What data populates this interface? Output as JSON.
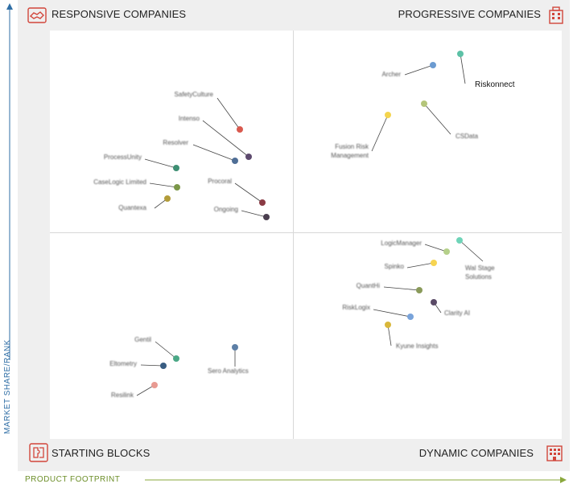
{
  "quadrants": {
    "top_left": "RESPONSIVE COMPANIES",
    "top_right": "PROGRESSIVE COMPANIES",
    "bottom_left": "STARTING BLOCKS",
    "bottom_right": "DYNAMIC COMPANIES"
  },
  "axes": {
    "y_label": "MARKET SHARE/RANK",
    "x_label": "PRODUCT FOOTPRINT"
  },
  "icons": {
    "top_left": "handshake-icon",
    "top_right": "building-icon",
    "bottom_left": "puzzle-icon",
    "bottom_right": "office-icon"
  },
  "colors": {
    "y_axis": "#2f6ea5",
    "x_axis": "#8aa83d",
    "icon_red": "#d2453a"
  },
  "vendors": [
    {
      "label": "Riskonnect",
      "color": "#5cc1a6",
      "blurred": false
    },
    {
      "label": "Archer",
      "color": "#6c9bd1",
      "blurred": true
    },
    {
      "label": "CSData",
      "color": "#b4c57a",
      "blurred": true
    },
    {
      "label": "Fusion Risk Management",
      "color": "#f4d44d",
      "blurred": true
    },
    {
      "label": "SafetyCulture",
      "color": "#d9594e",
      "blurred": true
    },
    {
      "label": "Intenso",
      "color": "#5d4a6e",
      "blurred": true
    },
    {
      "label": "Resolver",
      "color": "#4f6e96",
      "blurred": true
    },
    {
      "label": "ProcessUnity",
      "color": "#3e8f73",
      "blurred": true
    },
    {
      "label": "CaseLogic Limited",
      "color": "#7b9748",
      "blurred": true
    },
    {
      "label": "Quantexa",
      "color": "#b29c3a",
      "blurred": true
    },
    {
      "label": "Procoral",
      "color": "#8a3a44",
      "blurred": true
    },
    {
      "label": "Ongoing",
      "color": "#4b3f4f",
      "blurred": true
    },
    {
      "label": "LogicManager",
      "color": "#b5d08a",
      "blurred": true
    },
    {
      "label": "Wal Stage Solutions",
      "color": "#6fd4b8",
      "blurred": true
    },
    {
      "label": "Spinko",
      "color": "#f6d451",
      "blurred": true
    },
    {
      "label": "QuantHi",
      "color": "#8a9a5a",
      "blurred": true
    },
    {
      "label": "Clarity AI",
      "color": "#5a4a66",
      "blurred": true
    },
    {
      "label": "RiskLogix",
      "color": "#79a3da",
      "blurred": true
    },
    {
      "label": "Kyune Insights",
      "color": "#d9b73a",
      "blurred": true
    },
    {
      "label": "Gentil",
      "color": "#4ba886",
      "blurred": true
    },
    {
      "label": "Eltometry",
      "color": "#395d82",
      "blurred": true
    },
    {
      "label": "Resilink",
      "color": "#e89a92",
      "blurred": true
    },
    {
      "label": "Sero Analytics",
      "color": "#5d7fa6",
      "blurred": true
    }
  ]
}
